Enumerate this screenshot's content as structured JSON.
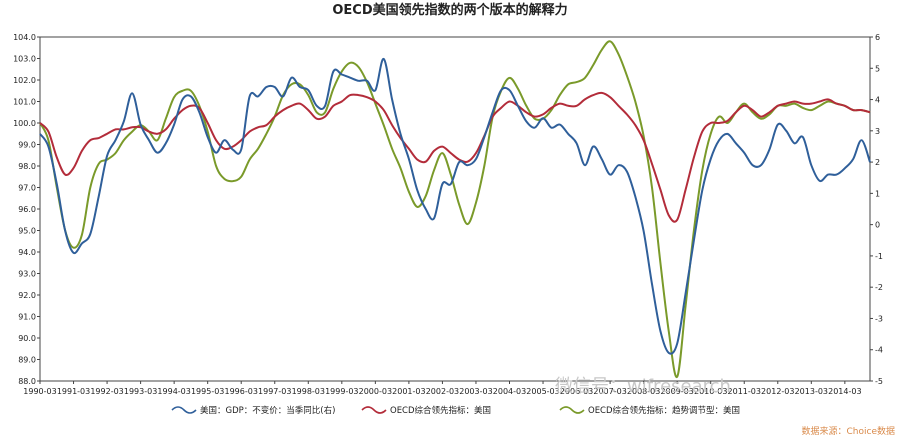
{
  "chart_data": {
    "type": "line",
    "title": "OECD美国领先指数的两个版本的解释力",
    "x_ticks": [
      "1990-03",
      "1991-03",
      "1992-03",
      "1993-03",
      "1994-03",
      "1995-03",
      "1996-03",
      "1997-03",
      "1998-03",
      "1999-03",
      "2000-03",
      "2001-03",
      "2002-03",
      "2003-03",
      "2004-03",
      "2005-03",
      "2006-03",
      "2007-03",
      "2008-03",
      "2009-03",
      "2010-03",
      "2011-03",
      "2012-03",
      "2013-03",
      "2014-03"
    ],
    "x": [
      "1990-03",
      "1990-06",
      "1990-09",
      "1990-12",
      "1991-03",
      "1991-06",
      "1991-09",
      "1991-12",
      "1992-03",
      "1992-06",
      "1992-09",
      "1992-12",
      "1993-03",
      "1993-06",
      "1993-09",
      "1993-12",
      "1994-03",
      "1994-06",
      "1994-09",
      "1994-12",
      "1995-03",
      "1995-06",
      "1995-09",
      "1995-12",
      "1996-03",
      "1996-06",
      "1996-09",
      "1996-12",
      "1997-03",
      "1997-06",
      "1997-09",
      "1997-12",
      "1998-03",
      "1998-06",
      "1998-09",
      "1998-12",
      "1999-03",
      "1999-06",
      "1999-09",
      "1999-12",
      "2000-03",
      "2000-06",
      "2000-09",
      "2000-12",
      "2001-03",
      "2001-06",
      "2001-09",
      "2001-12",
      "2002-03",
      "2002-06",
      "2002-09",
      "2002-12",
      "2003-03",
      "2003-06",
      "2003-09",
      "2003-12",
      "2004-03",
      "2004-06",
      "2004-09",
      "2004-12",
      "2005-03",
      "2005-06",
      "2005-09",
      "2005-12",
      "2006-03",
      "2006-06",
      "2006-09",
      "2006-12",
      "2007-03",
      "2007-06",
      "2007-09",
      "2007-12",
      "2008-03",
      "2008-06",
      "2008-09",
      "2008-12",
      "2009-03",
      "2009-06",
      "2009-09",
      "2009-12",
      "2010-03",
      "2010-06",
      "2010-09",
      "2010-12",
      "2011-03",
      "2011-06",
      "2011-09",
      "2011-12",
      "2012-03",
      "2012-06",
      "2012-09",
      "2012-12",
      "2013-03",
      "2013-06",
      "2013-09",
      "2013-12",
      "2014-03",
      "2014-06",
      "2014-09",
      "2014-12"
    ],
    "left_axis": {
      "min": 88.0,
      "max": 104.0,
      "ticks": [
        "104.0",
        "103.0",
        "102.0",
        "101.0",
        "100.0",
        "99.0",
        "98.0",
        "97.0",
        "96.0",
        "95.0",
        "94.0",
        "93.0",
        "92.0",
        "91.0",
        "90.0",
        "89.0",
        "88.0"
      ]
    },
    "right_axis": {
      "min": -5,
      "max": 6,
      "ticks": [
        "6",
        "5",
        "4",
        "3",
        "2",
        "1",
        "0",
        "-1",
        "-2",
        "-3",
        "-4",
        "-5"
      ]
    },
    "series": [
      {
        "name": "美国：GDP：不变价：当季同比(右)",
        "axis": "right",
        "color": "#2f5f9a",
        "values": [
          2.9,
          2.5,
          1.3,
          -0.2,
          -0.9,
          -0.6,
          -0.3,
          0.9,
          2.2,
          2.7,
          3.3,
          4.2,
          3.2,
          2.7,
          2.3,
          2.6,
          3.2,
          4.0,
          4.1,
          3.6,
          2.8,
          2.3,
          2.7,
          2.4,
          2.4,
          4.1,
          4.1,
          4.4,
          4.4,
          4.1,
          4.7,
          4.4,
          4.3,
          3.8,
          3.8,
          4.9,
          4.8,
          4.7,
          4.6,
          4.6,
          4.3,
          5.3,
          4.0,
          2.9,
          2.1,
          1.1,
          0.5,
          0.2,
          1.3,
          1.3,
          2.0,
          1.9,
          2.1,
          2.8,
          3.6,
          4.3,
          4.3,
          3.8,
          3.3,
          3.1,
          3.4,
          3.1,
          3.2,
          2.9,
          2.6,
          1.9,
          2.5,
          2.1,
          1.6,
          1.9,
          1.7,
          0.9,
          -0.2,
          -1.9,
          -3.4,
          -4.1,
          -3.8,
          -2.2,
          -0.5,
          1.1,
          2.1,
          2.7,
          2.9,
          2.6,
          2.3,
          1.9,
          1.9,
          2.4,
          3.2,
          3.0,
          2.6,
          2.8,
          1.9,
          1.4,
          1.6,
          1.6,
          1.8,
          2.1,
          2.7,
          2.0
        ]
      },
      {
        "name": "OECD综合领先指标：美国",
        "axis": "left",
        "color": "#b32c3a",
        "values": [
          100.0,
          99.6,
          98.4,
          97.6,
          97.9,
          98.7,
          99.2,
          99.3,
          99.5,
          99.7,
          99.7,
          99.8,
          99.8,
          99.6,
          99.5,
          99.7,
          100.2,
          100.6,
          100.8,
          100.7,
          100.0,
          99.2,
          98.8,
          98.9,
          99.2,
          99.6,
          99.8,
          99.9,
          100.3,
          100.6,
          100.8,
          100.9,
          100.6,
          100.2,
          100.3,
          100.8,
          101.0,
          101.3,
          101.3,
          101.2,
          101.0,
          100.6,
          99.9,
          99.3,
          98.8,
          98.3,
          98.2,
          98.7,
          98.9,
          98.6,
          98.3,
          98.2,
          98.6,
          99.4,
          100.3,
          100.7,
          101.0,
          100.8,
          100.5,
          100.3,
          100.4,
          100.7,
          100.9,
          100.8,
          100.8,
          101.1,
          101.3,
          101.4,
          101.2,
          100.8,
          100.4,
          99.9,
          99.2,
          98.1,
          96.9,
          95.7,
          95.5,
          96.9,
          98.4,
          99.6,
          100.0,
          100.0,
          100.1,
          100.5,
          100.8,
          100.6,
          100.3,
          100.5,
          100.8,
          100.9,
          101.0,
          100.9,
          100.9,
          101.0,
          101.1,
          100.9,
          100.8,
          100.6,
          100.6,
          100.5
        ]
      },
      {
        "name": "OECD综合领先指标：趋势调节型：美国",
        "axis": "left",
        "color": "#7a9a2a",
        "values": [
          100.0,
          99.2,
          97.0,
          95.0,
          94.2,
          94.8,
          97.0,
          98.1,
          98.3,
          98.6,
          99.2,
          99.6,
          99.9,
          99.6,
          99.2,
          100.2,
          101.2,
          101.5,
          101.5,
          100.8,
          99.6,
          98.0,
          97.4,
          97.3,
          97.5,
          98.3,
          98.8,
          99.5,
          100.3,
          101.3,
          101.8,
          101.8,
          101.3,
          100.5,
          100.5,
          101.6,
          102.4,
          102.8,
          102.6,
          101.9,
          100.9,
          99.9,
          98.8,
          97.9,
          96.8,
          96.1,
          96.6,
          97.8,
          98.6,
          97.6,
          96.2,
          95.3,
          96.3,
          98.0,
          100.3,
          101.5,
          102.1,
          101.6,
          100.8,
          100.2,
          100.2,
          100.6,
          101.3,
          101.8,
          101.9,
          102.1,
          102.7,
          103.4,
          103.8,
          103.2,
          102.2,
          101.0,
          99.4,
          97.0,
          93.5,
          90.3,
          88.2,
          91.5,
          95.0,
          97.8,
          99.5,
          100.3,
          100.0,
          100.5,
          100.9,
          100.5,
          100.2,
          100.4,
          100.8,
          100.8,
          100.9,
          100.7,
          100.6,
          100.8,
          101.0,
          100.9,
          100.8,
          100.6,
          100.6,
          100.5
        ]
      }
    ]
  },
  "watermark": "微信号：wifresearch",
  "source_note": "数据来源：Choice数据"
}
